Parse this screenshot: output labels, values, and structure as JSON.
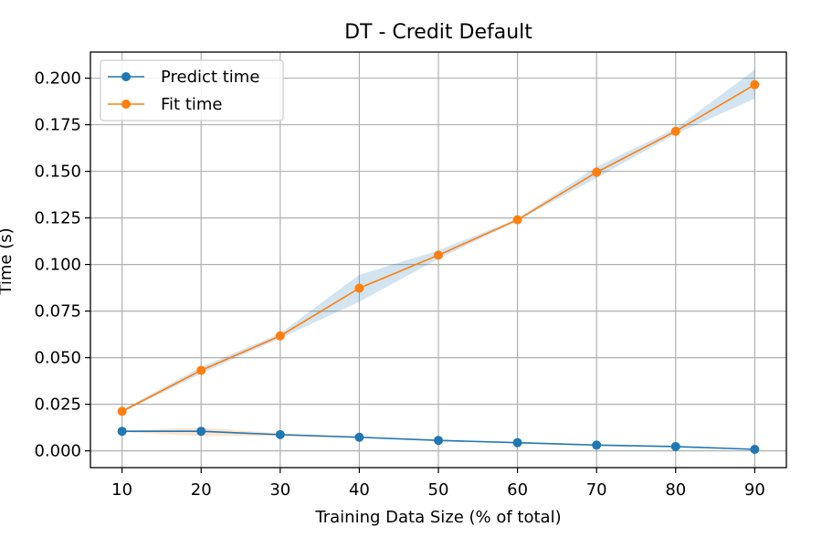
{
  "chart_data": {
    "type": "line",
    "title": "DT - Credit Default",
    "xlabel": "Training Data Size (% of total)",
    "ylabel": "Time (s)",
    "x": [
      10,
      20,
      30,
      40,
      50,
      60,
      70,
      80,
      90
    ],
    "xlim": [
      6,
      94
    ],
    "ylim": [
      -0.009,
      0.214
    ],
    "xticks": [
      10,
      20,
      30,
      40,
      50,
      60,
      70,
      80,
      90
    ],
    "yticks": [
      0.0,
      0.025,
      0.05,
      0.075,
      0.1,
      0.125,
      0.15,
      0.175,
      0.2
    ],
    "ytick_labels": [
      "0.000",
      "0.025",
      "0.050",
      "0.075",
      "0.100",
      "0.125",
      "0.150",
      "0.175",
      "0.200"
    ],
    "grid": true,
    "legend_position": "top-left",
    "series": [
      {
        "name": "Predict time",
        "color": "#1f77b4",
        "band_color": "#ff7f0e",
        "values": [
          0.0105,
          0.0105,
          0.0087,
          0.0073,
          0.0056,
          0.0044,
          0.0031,
          0.0023,
          0.0008
        ],
        "lower": [
          0.01,
          0.008,
          0.008,
          0.0068,
          0.0052,
          0.004,
          0.0028,
          0.002,
          0.0006
        ],
        "upper": [
          0.011,
          0.0125,
          0.0094,
          0.0078,
          0.006,
          0.0048,
          0.0034,
          0.0026,
          0.001
        ]
      },
      {
        "name": "Fit time",
        "color": "#ff7f0e",
        "band_color": "#1f77b4",
        "values": [
          0.0212,
          0.0432,
          0.0617,
          0.0873,
          0.105,
          0.124,
          0.1495,
          0.1715,
          0.1965
        ],
        "lower": [
          0.0205,
          0.0415,
          0.0605,
          0.08,
          0.103,
          0.1235,
          0.1465,
          0.17,
          0.189
        ],
        "upper": [
          0.022,
          0.045,
          0.063,
          0.0945,
          0.1075,
          0.1245,
          0.1525,
          0.173,
          0.2045
        ]
      }
    ]
  }
}
